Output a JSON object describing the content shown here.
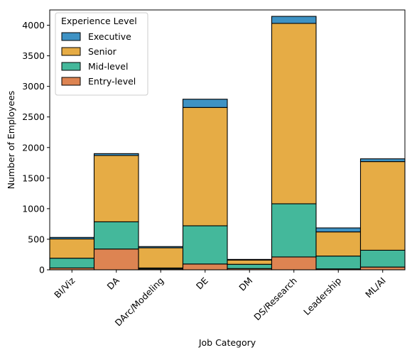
{
  "chart_data": {
    "type": "bar",
    "stacked": true,
    "xlabel": "Job Category",
    "ylabel": "Number of Employees",
    "categories": [
      "BI/Viz",
      "DA",
      "DArc/Modeling",
      "DE",
      "DM",
      "DS/Research",
      "Leadership",
      "ML/AI"
    ],
    "ylim": [
      0,
      4250
    ],
    "yticks": [
      0,
      500,
      1000,
      1500,
      2000,
      2500,
      3000,
      3500,
      4000
    ],
    "grid": false,
    "legend": {
      "title": "Experience Level",
      "position": "top-left"
    },
    "series": [
      {
        "name": "Entry-level",
        "color": "#dd8452",
        "values": [
          30,
          340,
          15,
          95,
          20,
          210,
          15,
          45
        ]
      },
      {
        "name": "Mid-level",
        "color": "#44b89b",
        "values": [
          160,
          445,
          15,
          625,
          70,
          870,
          210,
          275
        ]
      },
      {
        "name": "Senior",
        "color": "#e6ac45",
        "values": [
          315,
          1085,
          330,
          1935,
          70,
          2950,
          395,
          1450
        ]
      },
      {
        "name": "Executive",
        "color": "#3e92c4",
        "values": [
          25,
          30,
          20,
          135,
          10,
          115,
          65,
          45
        ]
      }
    ]
  }
}
